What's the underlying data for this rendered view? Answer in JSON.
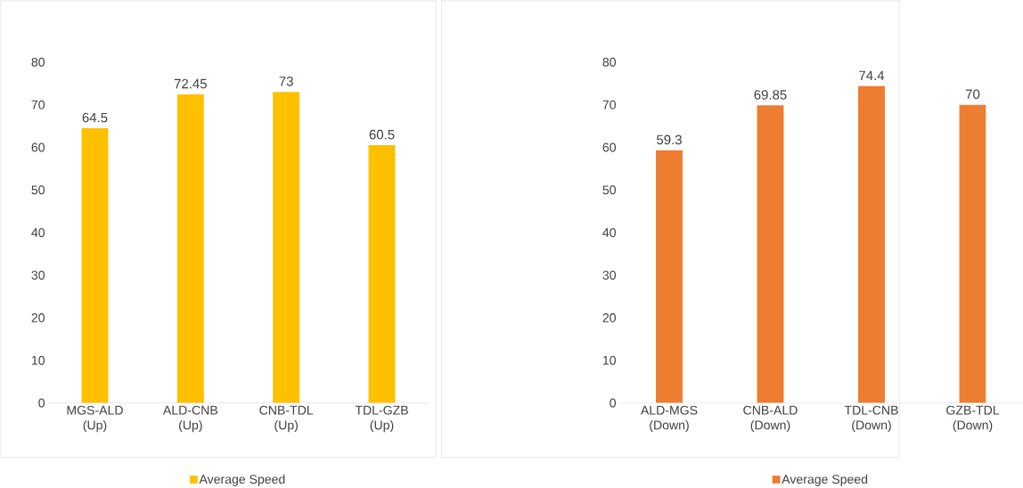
{
  "chart_data": [
    {
      "type": "bar",
      "categories": [
        "MGS-ALD (Up)",
        "ALD-CNB (Up)",
        "CNB-TDL (Up)",
        "TDL-GZB (Up)"
      ],
      "series": [
        {
          "name": "Average Speed",
          "color": "#ffc000",
          "values": [
            64.5,
            72.45,
            73,
            60.5
          ]
        }
      ],
      "ylim": [
        0,
        80
      ],
      "yticks": [
        0,
        10,
        20,
        30,
        40,
        50,
        60,
        70,
        80
      ],
      "data_labels": true,
      "legend": "bottom"
    },
    {
      "type": "bar",
      "categories": [
        "ALD-MGS (Down)",
        "CNB-ALD (Down)",
        "TDL-CNB (Down)",
        "GZB-TDL (Down)"
      ],
      "series": [
        {
          "name": "Average Speed",
          "color": "#ed7d31",
          "values": [
            59.3,
            69.85,
            74.4,
            70
          ]
        }
      ],
      "ylim": [
        0,
        80
      ],
      "yticks": [
        0,
        10,
        20,
        30,
        40,
        50,
        60,
        70,
        80
      ],
      "data_labels": true,
      "legend": "bottom"
    }
  ]
}
